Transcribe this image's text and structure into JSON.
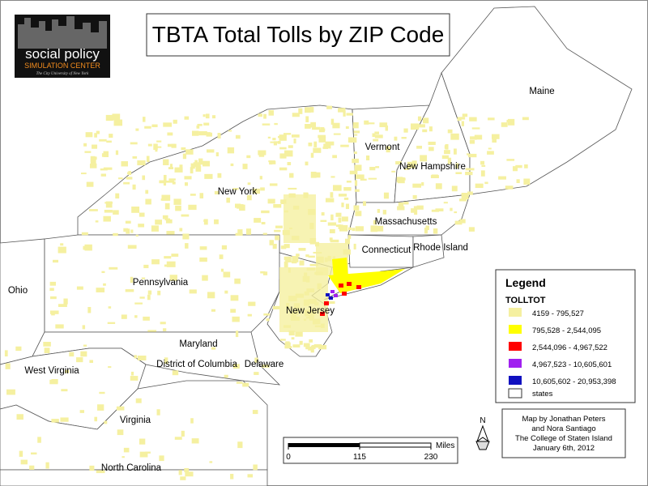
{
  "title": "TBTA Total Tolls by ZIP Code",
  "logo": {
    "line1": "social policy",
    "line2": "SIMULATION CENTER",
    "line3": "The City University of New York"
  },
  "states": [
    "Maine",
    "Vermont",
    "New Hampshire",
    "New York",
    "Massachusetts",
    "Connecticut",
    "Rhode Island",
    "Pennsylvania",
    "Ohio",
    "New Jersey",
    "Maryland",
    "District of Columbia",
    "Delaware",
    "West Virginia",
    "Virginia",
    "North Carolina"
  ],
  "legend": {
    "title": "Legend",
    "field": "TOLLTOT",
    "classes": [
      {
        "label": "4159 - 795,527",
        "color": "#f5f0a0"
      },
      {
        "label": "795,528 - 2,544,095",
        "color": "#ffff00"
      },
      {
        "label": "2,544,096 - 4,967,522",
        "color": "#ff0000"
      },
      {
        "label": "4,967,523 - 10,605,601",
        "color": "#a020f0"
      },
      {
        "label": "10,605,602 - 20,953,398",
        "color": "#1010c0"
      }
    ],
    "outline_label": "states"
  },
  "credits": [
    "Map by Jonathan Peters",
    "and Nora Santiago",
    "The College of Staten Island",
    "January 6th, 2012"
  ],
  "scale": {
    "unit": "Miles",
    "xlim": [
      0,
      230
    ],
    "ticks": [
      0,
      115,
      230
    ]
  },
  "north": "N"
}
